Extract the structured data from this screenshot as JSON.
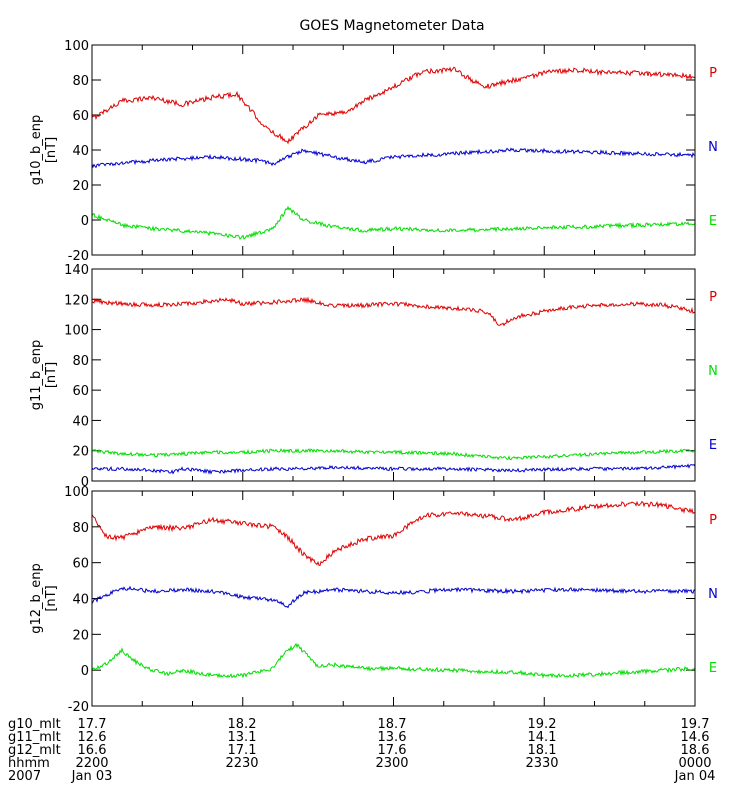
{
  "chart_data": {
    "type": "line",
    "title": "GOES Magnetometer Data",
    "x_range": [
      2200,
      2400
    ],
    "panels": [
      {
        "ylabel": "g10_b_enp",
        "yunit": "[nT]",
        "ylim": [
          -20,
          100
        ],
        "yticks": [
          "-20",
          "0",
          "20",
          "40",
          "60",
          "80",
          "100"
        ],
        "series": [
          {
            "name": "P",
            "color": "#dd0000",
            "x": [
              2200,
              2210,
              2220,
              2230,
              2240,
              2248,
              2253,
              2258,
              2265,
              2275,
              2285,
              2290,
              2300,
              2310,
              2320,
              2330,
              2340,
              2350,
              2360,
              2370,
              2380,
              2390,
              2400
            ],
            "values": [
              58,
              68,
              70,
              66,
              70,
              72,
              62,
              52,
              45,
              60,
              62,
              68,
              76,
              85,
              86,
              76,
              80,
              84,
              86,
              84,
              84,
              83,
              82
            ]
          },
          {
            "name": "N",
            "color": "#0000cc",
            "x": [
              2200,
              2220,
              2240,
              2255,
              2260,
              2270,
              2280,
              2290,
              2300,
              2320,
              2340,
              2360,
              2380,
              2400
            ],
            "values": [
              31,
              34,
              36,
              34,
              32,
              40,
              36,
              33,
              36,
              38,
              40,
              39,
              38,
              37
            ]
          },
          {
            "name": "E",
            "color": "#00dd00",
            "x": [
              2200,
              2210,
              2220,
              2230,
              2240,
              2250,
              2260,
              2265,
              2270,
              2280,
              2290,
              2300,
              2320,
              2340,
              2360,
              2380,
              2400
            ],
            "values": [
              3,
              -3,
              -5,
              -6,
              -8,
              -10,
              -5,
              7,
              0,
              -4,
              -6,
              -5,
              -6,
              -5,
              -4,
              -3,
              -2
            ]
          }
        ]
      },
      {
        "ylabel": "g11_b_enp",
        "yunit": "[nT]",
        "ylim": [
          0,
          140
        ],
        "yticks": [
          "0",
          "20",
          "40",
          "60",
          "80",
          "100",
          "120",
          "140"
        ],
        "series": [
          {
            "name": "P",
            "color": "#dd0000",
            "x": [
              2200,
              2210,
              2220,
              2230,
              2240,
              2245,
              2250,
              2260,
              2270,
              2280,
              2290,
              2300,
              2320,
              2330,
              2333,
              2335,
              2340,
              2350,
              2360,
              2370,
              2380,
              2390,
              2400
            ],
            "values": [
              119,
              117,
              116,
              117,
              119,
              120,
              117,
              118,
              120,
              116,
              116,
              117,
              114,
              112,
              108,
              102,
              108,
              112,
              115,
              116,
              117,
              116,
              112
            ]
          },
          {
            "name": "N",
            "color": "#00dd00",
            "x": [
              2200,
              2210,
              2220,
              2230,
              2240,
              2250,
              2260,
              2270,
              2280,
              2290,
              2300,
              2320,
              2330,
              2340,
              2360,
              2380,
              2400
            ],
            "values": [
              20,
              18,
              17,
              18,
              19,
              19,
              20,
              20,
              20,
              19,
              19,
              18,
              16,
              15,
              17,
              19,
              20
            ]
          },
          {
            "name": "E",
            "color": "#0000cc",
            "x": [
              2200,
              2210,
              2220,
              2227,
              2230,
              2240,
              2250,
              2260,
              2270,
              2280,
              2300,
              2320,
              2340,
              2360,
              2380,
              2390,
              2400
            ],
            "values": [
              8,
              8,
              7,
              6,
              8,
              6,
              7,
              8,
              8,
              9,
              8,
              8,
              7,
              8,
              8,
              9,
              10
            ]
          }
        ]
      },
      {
        "ylabel": "g12_b_enp",
        "yunit": "[nT]",
        "ylim": [
          -20,
          100
        ],
        "yticks": [
          "-20",
          "0",
          "20",
          "40",
          "60",
          "80",
          "100"
        ],
        "series": [
          {
            "name": "P",
            "color": "#dd0000",
            "x": [
              2200,
              2205,
              2210,
              2220,
              2230,
              2240,
              2250,
              2260,
              2265,
              2270,
              2275,
              2280,
              2290,
              2300,
              2310,
              2320,
              2330,
              2340,
              2350,
              2360,
              2370,
              2380,
              2390,
              2400
            ],
            "values": [
              86,
              74,
              74,
              80,
              79,
              84,
              82,
              80,
              74,
              65,
              59,
              66,
              73,
              75,
              86,
              88,
              86,
              84,
              88,
              90,
              92,
              93,
              92,
              88
            ]
          },
          {
            "name": "N",
            "color": "#0000cc",
            "x": [
              2200,
              2210,
              2220,
              2230,
              2240,
              2250,
              2260,
              2265,
              2270,
              2280,
              2290,
              2300,
              2320,
              2340,
              2360,
              2380,
              2400
            ],
            "values": [
              38,
              46,
              44,
              45,
              44,
              41,
              39,
              36,
              43,
              45,
              44,
              43,
              45,
              44,
              45,
              44,
              44
            ]
          },
          {
            "name": "E",
            "color": "#00dd00",
            "x": [
              2200,
              2205,
              2210,
              2215,
              2220,
              2225,
              2230,
              2240,
              2250,
              2260,
              2264,
              2268,
              2275,
              2280,
              2290,
              2300,
              2320,
              2330,
              2340,
              2350,
              2360,
              2380,
              2400
            ],
            "values": [
              0,
              4,
              11,
              4,
              0,
              -2,
              0,
              -3,
              -3,
              1,
              10,
              14,
              2,
              3,
              1,
              1,
              0,
              -1,
              -1,
              -3,
              -3,
              -1,
              1
            ]
          }
        ]
      }
    ],
    "x_label_rows": [
      {
        "label": "g10_mlt",
        "values": [
          "17.7",
          "18.2",
          "18.7",
          "19.2",
          "19.7"
        ]
      },
      {
        "label": "g11_mlt",
        "values": [
          "12.6",
          "13.1",
          "13.6",
          "14.1",
          "14.6"
        ]
      },
      {
        "label": "g12_mlt",
        "values": [
          "16.6",
          "17.1",
          "17.6",
          "18.1",
          "18.6"
        ]
      },
      {
        "label": "hhmm",
        "values": [
          "2200",
          "2230",
          "2300",
          "2330",
          "0000"
        ]
      },
      {
        "label": "2007",
        "values": [
          "Jan 03",
          "",
          "",
          "",
          "Jan 04"
        ]
      }
    ]
  }
}
